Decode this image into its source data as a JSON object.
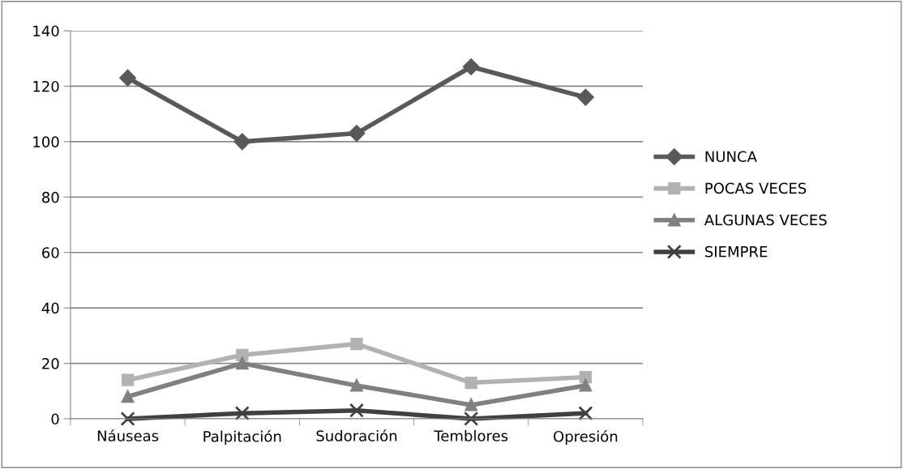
{
  "chart_data": {
    "type": "line",
    "categories": [
      "Náuseas",
      "Palpitación",
      "Sudoración",
      "Temblores",
      "Opresión"
    ],
    "series": [
      {
        "name": "NUNCA",
        "color": "#595959",
        "marker": "diamond",
        "values": [
          123,
          100,
          103,
          127,
          116
        ]
      },
      {
        "name": "POCAS VECES",
        "color": "#b2b2b2",
        "marker": "square",
        "values": [
          14,
          23,
          27,
          13,
          15
        ]
      },
      {
        "name": "ALGUNAS VECES",
        "color": "#808080",
        "marker": "triangle",
        "values": [
          8,
          20,
          12,
          5,
          12
        ]
      },
      {
        "name": "SIEMPRE",
        "color": "#404040",
        "marker": "cross",
        "values": [
          0,
          2,
          3,
          0,
          2
        ]
      }
    ],
    "ylim": [
      0,
      140
    ],
    "yticks": [
      0,
      20,
      40,
      60,
      80,
      100,
      120,
      140
    ],
    "grid": "y",
    "legend": "right",
    "line_style": "solid"
  }
}
